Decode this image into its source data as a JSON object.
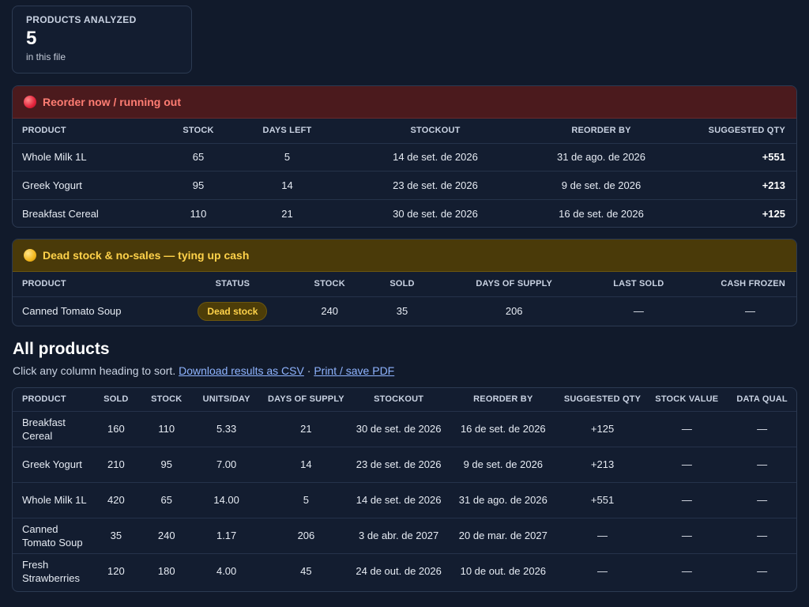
{
  "summary": {
    "label": "PRODUCTS ANALYZED",
    "value": "5",
    "sub": "in this file"
  },
  "reorder": {
    "title": "Reorder now / running out",
    "columns": [
      "PRODUCT",
      "STOCK",
      "DAYS LEFT",
      "STOCKOUT",
      "REORDER BY",
      "SUGGESTED QTY"
    ],
    "rows": [
      [
        "Whole Milk 1L",
        "65",
        "5",
        "14 de set. de 2026",
        "31 de ago. de 2026",
        "+551"
      ],
      [
        "Greek Yogurt",
        "95",
        "14",
        "23 de set. de 2026",
        "9 de set. de 2026",
        "+213"
      ],
      [
        "Breakfast Cereal",
        "110",
        "21",
        "30 de set. de 2026",
        "16 de set. de 2026",
        "+125"
      ]
    ]
  },
  "dead": {
    "title": "Dead stock & no-sales — tying up cash",
    "columns": [
      "PRODUCT",
      "STATUS",
      "STOCK",
      "SOLD",
      "DAYS OF SUPPLY",
      "LAST SOLD",
      "CASH FROZEN"
    ],
    "rows": [
      [
        "Canned Tomato Soup",
        "Dead stock",
        "240",
        "35",
        "206",
        "—",
        "—"
      ]
    ]
  },
  "all": {
    "heading": "All products",
    "hint": "Click any column heading to sort.",
    "csv_link": "Download results as CSV",
    "sep": " · ",
    "pdf_link": "Print / save PDF",
    "columns": [
      "PRODUCT",
      "SOLD",
      "STOCK",
      "UNITS/DAY",
      "DAYS OF SUPPLY",
      "STOCKOUT",
      "REORDER BY",
      "SUGGESTED QTY",
      "STOCK VALUE",
      "DATA QUAL"
    ],
    "rows": [
      [
        "Breakfast Cereal",
        "160",
        "110",
        "5.33",
        "21",
        "30 de set. de 2026",
        "16 de set. de 2026",
        "+125",
        "—",
        "—"
      ],
      [
        "Greek Yogurt",
        "210",
        "95",
        "7.00",
        "14",
        "23 de set. de 2026",
        "9 de set. de 2026",
        "+213",
        "—",
        "—"
      ],
      [
        "Whole Milk 1L",
        "420",
        "65",
        "14.00",
        "5",
        "14 de set. de 2026",
        "31 de ago. de 2026",
        "+551",
        "—",
        "—"
      ],
      [
        "Canned Tomato Soup",
        "35",
        "240",
        "1.17",
        "206",
        "3 de abr. de 2027",
        "20 de mar. de 2027",
        "—",
        "—",
        "—"
      ],
      [
        "Fresh Strawberries",
        "120",
        "180",
        "4.00",
        "45",
        "24 de out. de 2026",
        "10 de out. de 2026",
        "—",
        "—",
        "—"
      ]
    ]
  }
}
